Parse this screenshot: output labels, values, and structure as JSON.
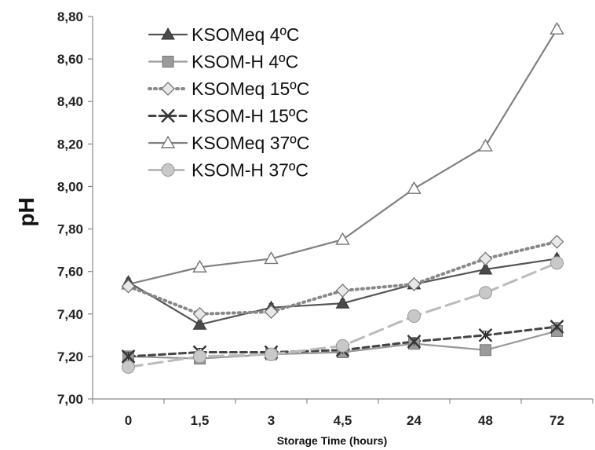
{
  "chart_data": {
    "type": "line",
    "title": "",
    "xlabel": "Storage Time (hours)",
    "ylabel": "pH",
    "categories": [
      "0",
      "1,5",
      "3",
      "4,5",
      "24",
      "48",
      "72"
    ],
    "ylim": [
      7.0,
      8.8
    ],
    "yticks": [
      "7,00",
      "7,20",
      "7,40",
      "7,60",
      "7,80",
      "8,00",
      "8,20",
      "8,40",
      "8,60",
      "8,80"
    ],
    "grid": false,
    "legend_position": "top-left",
    "series": [
      {
        "name": "KSOMeq 4ºC",
        "values": [
          7.55,
          7.35,
          7.43,
          7.45,
          7.54,
          7.61,
          7.66
        ],
        "color": "#555555",
        "marker": "triangle-filled",
        "line": "solid"
      },
      {
        "name": "KSOM-H 4ºC",
        "values": [
          7.2,
          7.19,
          7.21,
          7.22,
          7.26,
          7.23,
          7.32
        ],
        "color": "#999999",
        "marker": "square",
        "line": "solid"
      },
      {
        "name": "KSOMeq 15ºC",
        "values": [
          7.53,
          7.4,
          7.41,
          7.51,
          7.54,
          7.66,
          7.74
        ],
        "color": "#888888",
        "marker": "diamond",
        "line": "dotted"
      },
      {
        "name": "KSOM-H 15ºC",
        "values": [
          7.2,
          7.22,
          7.22,
          7.23,
          7.27,
          7.3,
          7.34
        ],
        "color": "#444444",
        "marker": "x",
        "line": "dashed"
      },
      {
        "name": "KSOMeq 37ºC",
        "values": [
          7.54,
          7.62,
          7.66,
          7.75,
          7.99,
          8.19,
          8.74
        ],
        "color": "#808080",
        "marker": "triangle-open",
        "line": "solid"
      },
      {
        "name": "KSOM-H 37ºC",
        "values": [
          7.15,
          7.2,
          7.21,
          7.25,
          7.39,
          7.5,
          7.64
        ],
        "color": "#bbbbbb",
        "marker": "circle",
        "line": "long-dash"
      }
    ]
  }
}
